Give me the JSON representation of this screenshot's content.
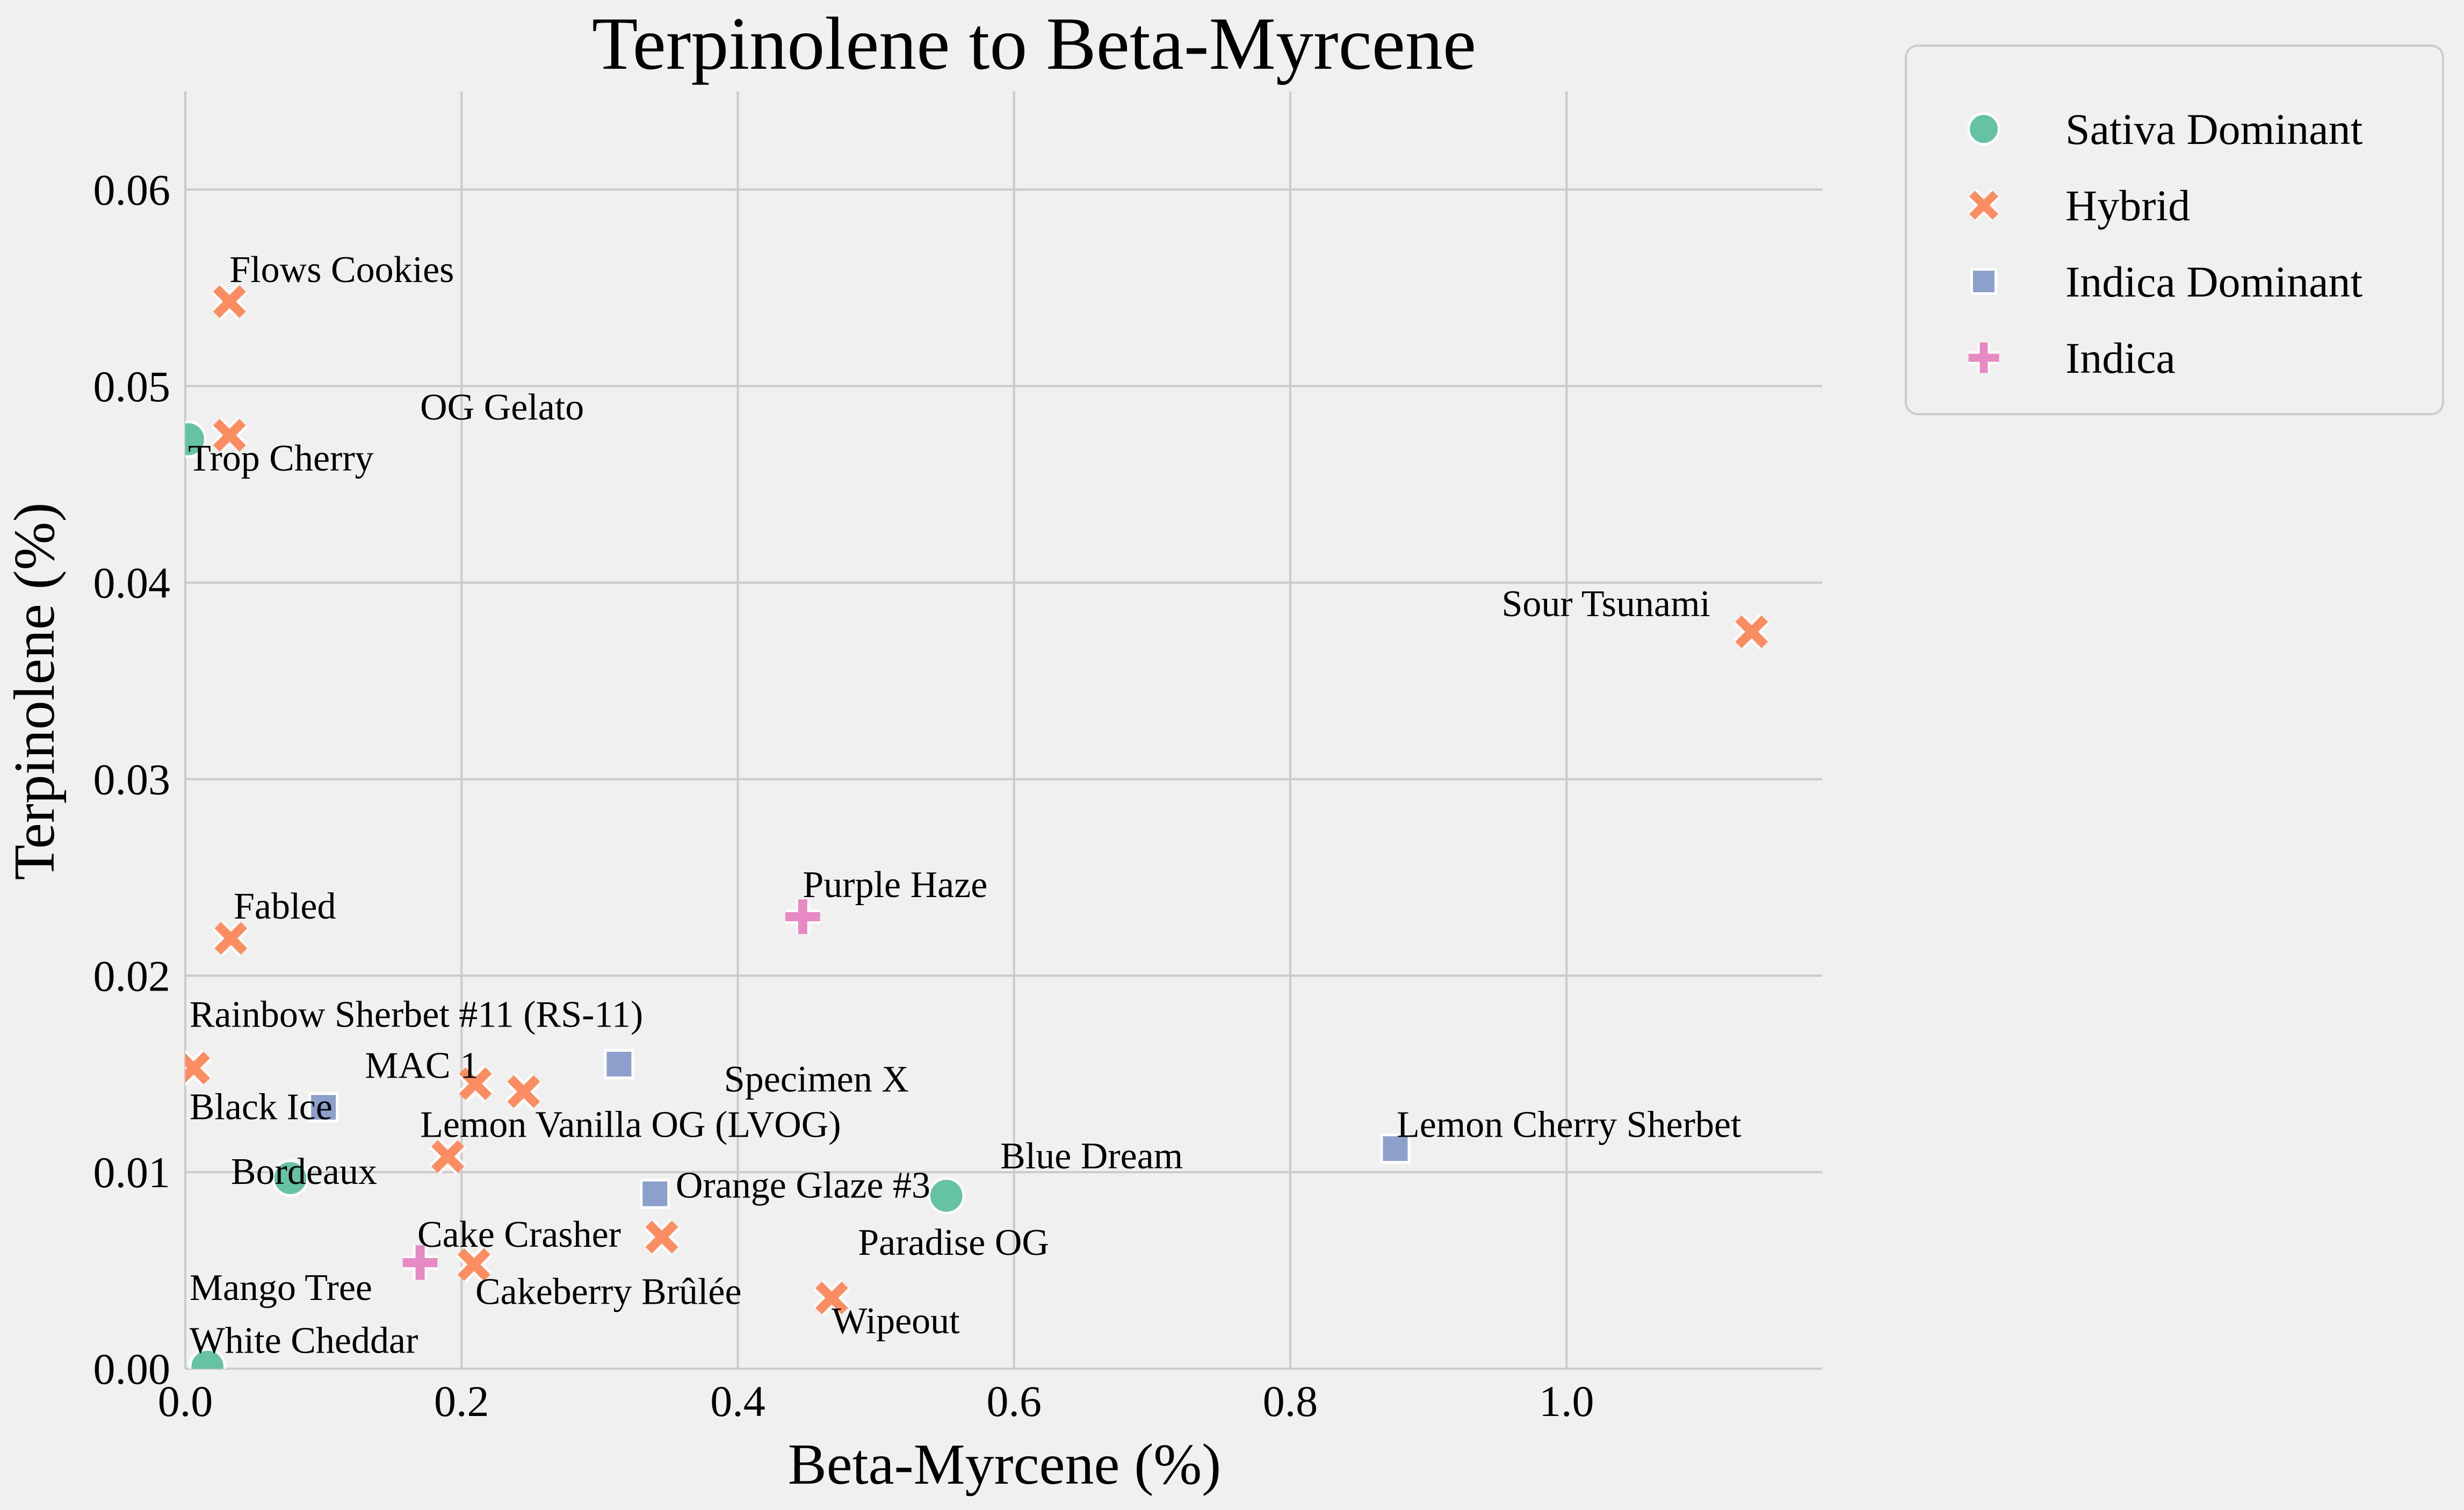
{
  "chart_data": {
    "type": "scatter",
    "title": "Terpinolene to Beta-Myrcene",
    "xlabel": "Beta-Myrcene (%)",
    "ylabel": "Terpinolene (%)",
    "xlim": [
      0.0,
      1.185
    ],
    "ylim": [
      0.0,
      0.065
    ],
    "xticks": [
      0.0,
      0.2,
      0.4,
      0.6,
      0.8,
      1.0
    ],
    "yticks": [
      0.0,
      0.01,
      0.02,
      0.03,
      0.04,
      0.05,
      0.06
    ],
    "xtick_labels": [
      "0.0",
      "0.2",
      "0.4",
      "0.6",
      "0.8",
      "1.0"
    ],
    "ytick_labels": [
      "0.00",
      "0.01",
      "0.02",
      "0.03",
      "0.04",
      "0.05",
      "0.06"
    ],
    "grid": true,
    "legend_position": "outside-top-right",
    "series": [
      {
        "name": "Sativa Dominant",
        "marker": "circle",
        "color": "#66c2a5",
        "points": [
          {
            "label": "Trop Cherry",
            "x": 0.002,
            "y": 0.0473
          },
          {
            "label": "Bordeaux",
            "x": 0.076,
            "y": 0.0097
          },
          {
            "label": "Blue Dream",
            "x": 0.551,
            "y": 0.0088
          },
          {
            "label": "White Cheddar",
            "x": 0.016,
            "y": 0.0001
          }
        ]
      },
      {
        "name": "Hybrid",
        "marker": "x",
        "color": "#fc8d62",
        "points": [
          {
            "label": "Flows Cookies",
            "x": 0.032,
            "y": 0.0543
          },
          {
            "label": "OG Gelato",
            "x": 0.032,
            "y": 0.0475
          },
          {
            "label": "Sour Tsunami",
            "x": 1.134,
            "y": 0.0375
          },
          {
            "label": "Fabled",
            "x": 0.033,
            "y": 0.0219
          },
          {
            "label": "Rainbow Sherbet #11 (RS-11)",
            "x": 0.006,
            "y": 0.0153
          },
          {
            "label": "MAC 1",
            "x": 0.21,
            "y": 0.0145
          },
          {
            "label": "Specimen X",
            "x": 0.245,
            "y": 0.0141
          },
          {
            "label": "Lemon Vanilla OG (LVOG)",
            "x": 0.19,
            "y": 0.0108
          },
          {
            "label": "Paradise OG",
            "x": 0.345,
            "y": 0.0067
          },
          {
            "label": "Cakeberry Brûlée",
            "x": 0.209,
            "y": 0.0053
          },
          {
            "label": "Wipeout",
            "x": 0.468,
            "y": 0.0036
          }
        ]
      },
      {
        "name": "Indica Dominant",
        "marker": "square",
        "color": "#8da0cb",
        "points": [
          {
            "label": "Black Ice",
            "x": 0.1,
            "y": 0.0133
          },
          {
            "label": "Rainbow Sherbet #11 (RS-11)",
            "x": 0.314,
            "y": 0.0155
          },
          {
            "label": "Lemon Cherry Sherbet",
            "x": 0.876,
            "y": 0.0112
          },
          {
            "label": "Orange Glaze #3",
            "x": 0.34,
            "y": 0.0089
          }
        ]
      },
      {
        "name": "Indica",
        "marker": "plus",
        "color": "#e78ac3",
        "points": [
          {
            "label": "Purple Haze",
            "x": 0.447,
            "y": 0.023
          },
          {
            "label": "Cake Crasher",
            "x": 0.17,
            "y": 0.0054
          }
        ]
      }
    ],
    "annotations": [
      {
        "text": "Flows Cookies",
        "x": 0.032,
        "y": 0.0553
      },
      {
        "text": "OG Gelato",
        "x": 0.17,
        "y": 0.0483
      },
      {
        "text": "Trop Cherry",
        "x": 0.002,
        "y": 0.0457
      },
      {
        "text": "Sour Tsunami",
        "x": 0.953,
        "y": 0.0383
      },
      {
        "text": "Fabled",
        "x": 0.035,
        "y": 0.0229
      },
      {
        "text": "Purple Haze",
        "x": 0.447,
        "y": 0.024
      },
      {
        "text": "Rainbow Sherbet #11 (RS-11)",
        "x": 0.003,
        "y": 0.0174
      },
      {
        "text": "MAC 1",
        "x": 0.13,
        "y": 0.0148
      },
      {
        "text": "Specimen X",
        "x": 0.39,
        "y": 0.0141
      },
      {
        "text": "Black Ice",
        "x": 0.003,
        "y": 0.0127
      },
      {
        "text": "Lemon Vanilla OG (LVOG)",
        "x": 0.17,
        "y": 0.0118
      },
      {
        "text": "Lemon Cherry Sherbet",
        "x": 0.877,
        "y": 0.0118
      },
      {
        "text": "Blue Dream",
        "x": 0.59,
        "y": 0.0102
      },
      {
        "text": "Bordeaux",
        "x": 0.033,
        "y": 0.0094
      },
      {
        "text": "Orange Glaze #3",
        "x": 0.355,
        "y": 0.0087
      },
      {
        "text": "Cake Crasher",
        "x": 0.168,
        "y": 0.0062
      },
      {
        "text": "Paradise OG",
        "x": 0.487,
        "y": 0.0058
      },
      {
        "text": "Mango Tree",
        "x": 0.003,
        "y": 0.0035
      },
      {
        "text": "Cakeberry Brûlée",
        "x": 0.21,
        "y": 0.0033
      },
      {
        "text": "Wipeout",
        "x": 0.468,
        "y": 0.0018
      },
      {
        "text": "White Cheddar",
        "x": 0.003,
        "y": 0.0008
      }
    ]
  }
}
